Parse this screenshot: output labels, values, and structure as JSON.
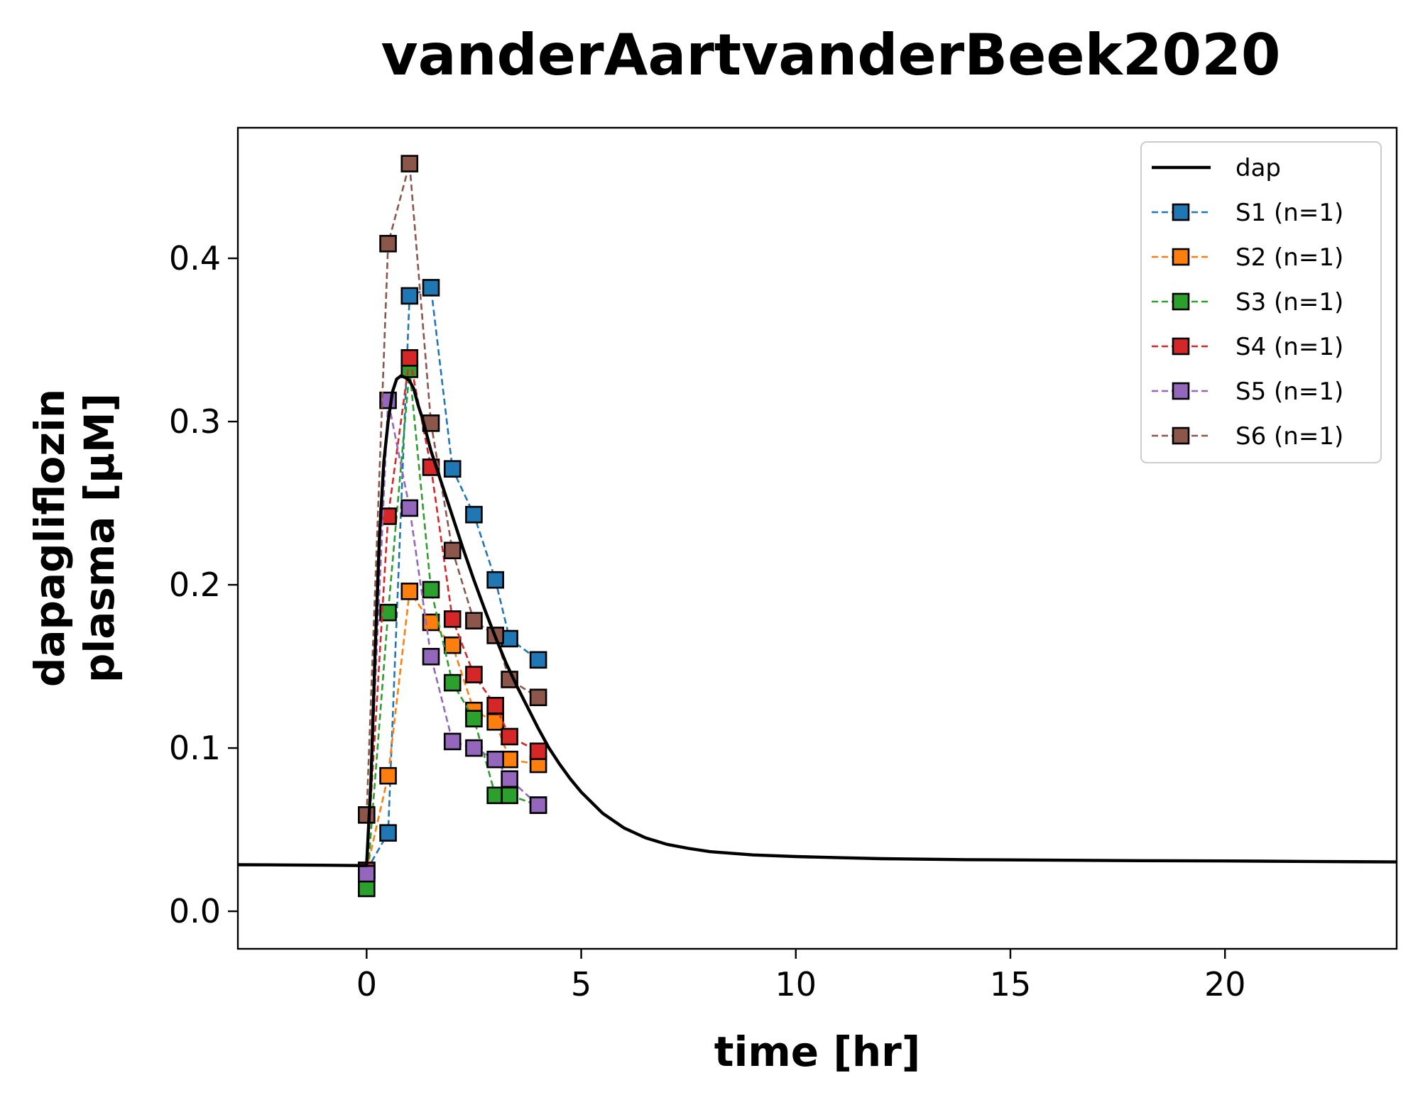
{
  "chart_data": {
    "type": "line",
    "title": "vanderAartvanderBeek2020",
    "xlabel": "time [hr]",
    "ylabel_lines": [
      "dapagliflozin",
      "plasma [µM]"
    ],
    "xlim": [
      -3,
      24
    ],
    "ylim": [
      -0.023,
      0.48
    ],
    "xticks": [
      0,
      5,
      10,
      15,
      20
    ],
    "xtick_labels": [
      "0",
      "5",
      "10",
      "15",
      "20"
    ],
    "yticks": [
      0.0,
      0.1,
      0.2,
      0.3,
      0.4
    ],
    "ytick_labels": [
      "0.0",
      "0.1",
      "0.2",
      "0.3",
      "0.4"
    ],
    "grid": false,
    "legend_position": "top-right",
    "model": {
      "name": "dap",
      "color": "#000000",
      "x": [
        -3,
        -2,
        -1,
        0,
        0.1,
        0.2,
        0.3,
        0.4,
        0.5,
        0.6,
        0.7,
        0.8,
        0.9,
        1.0,
        1.1,
        1.2,
        1.3,
        1.4,
        1.5,
        1.75,
        2.0,
        2.25,
        2.5,
        2.75,
        3.0,
        3.25,
        3.5,
        3.75,
        4.0,
        4.25,
        4.5,
        4.75,
        5.0,
        5.5,
        6.0,
        6.5,
        7.0,
        7.5,
        8.0,
        9.0,
        10.0,
        11.0,
        12.0,
        14.0,
        16.0,
        18.0,
        20.0,
        22.0,
        24.0
      ],
      "y": [
        0.0285,
        0.0284,
        0.0282,
        0.028,
        0.08,
        0.16,
        0.23,
        0.275,
        0.3,
        0.318,
        0.326,
        0.328,
        0.327,
        0.325,
        0.32,
        0.31,
        0.302,
        0.292,
        0.282,
        0.262,
        0.242,
        0.222,
        0.203,
        0.185,
        0.168,
        0.152,
        0.138,
        0.125,
        0.112,
        0.1,
        0.09,
        0.081,
        0.073,
        0.06,
        0.051,
        0.045,
        0.041,
        0.0385,
        0.0365,
        0.0345,
        0.0335,
        0.0328,
        0.0322,
        0.0316,
        0.0313,
        0.031,
        0.0308,
        0.0305,
        0.0302
      ]
    },
    "series": [
      {
        "name": "S1 (n=1)",
        "color": "#1f77b4",
        "x": [
          0,
          0.5,
          1,
          1.5,
          2,
          2.5,
          3,
          3.33,
          4
        ],
        "y": [
          0.025,
          0.048,
          0.377,
          0.382,
          0.271,
          0.243,
          0.203,
          0.167,
          0.154
        ]
      },
      {
        "name": "S2 (n=1)",
        "color": "#ff7f0e",
        "x": [
          0,
          0.5,
          1,
          1.5,
          2,
          2.5,
          3,
          3.33,
          4
        ],
        "y": [
          0.025,
          0.083,
          0.196,
          0.177,
          0.163,
          0.123,
          0.116,
          0.093,
          0.09
        ]
      },
      {
        "name": "S3 (n=1)",
        "color": "#2ca02c",
        "x": [
          0,
          0.5,
          1,
          1.5,
          2,
          2.5,
          3,
          3.33,
          4
        ],
        "y": [
          0.014,
          0.183,
          0.332,
          0.197,
          0.14,
          0.118,
          0.071,
          0.071,
          0.065
        ]
      },
      {
        "name": "S4 (n=1)",
        "color": "#d62728",
        "x": [
          0,
          0.5,
          1,
          1.5,
          2,
          2.5,
          3,
          3.33,
          4
        ],
        "y": [
          0.025,
          0.242,
          0.339,
          0.272,
          0.179,
          0.145,
          0.126,
          0.107,
          0.098
        ]
      },
      {
        "name": "S5 (n=1)",
        "color": "#9467bd",
        "x": [
          0,
          0.5,
          1,
          1.5,
          2,
          2.5,
          3,
          3.33,
          4
        ],
        "y": [
          0.023,
          0.313,
          0.247,
          0.156,
          0.104,
          0.1,
          0.093,
          0.081,
          0.065
        ]
      },
      {
        "name": "S6 (n=1)",
        "color": "#8c564b",
        "x": [
          0,
          0.5,
          1,
          1.5,
          2,
          2.5,
          3,
          3.33,
          4
        ],
        "y": [
          0.059,
          0.409,
          0.458,
          0.299,
          0.221,
          0.178,
          0.169,
          0.142,
          0.131
        ]
      }
    ]
  }
}
